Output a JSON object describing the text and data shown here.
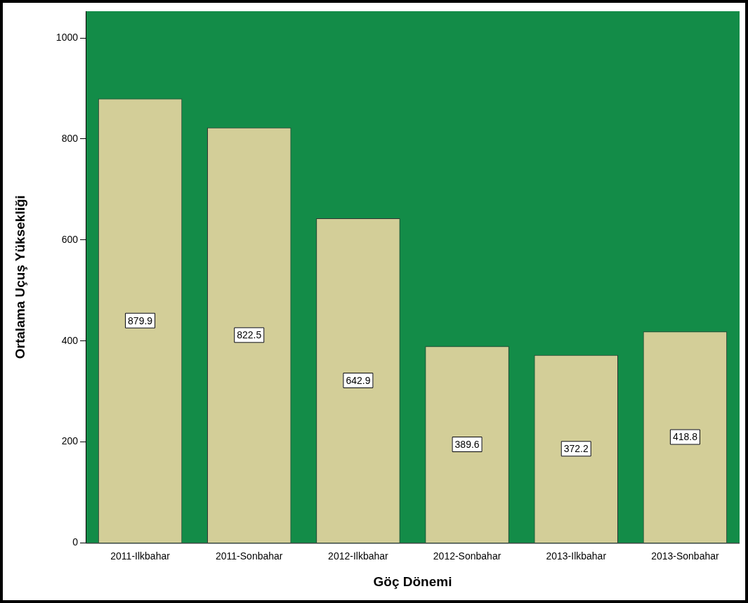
{
  "chart_data": {
    "type": "bar",
    "xlabel": "Göç Dönemi",
    "ylabel": "Ortalama Uçuş Yüksekliği",
    "categories": [
      "2011-Ilkbahar",
      "2011-Sonbahar",
      "2012-Ilkbahar",
      "2012-Sonbahar",
      "2013-Ilkbahar",
      "2013-Sonbahar"
    ],
    "values": [
      879.9,
      822.5,
      642.9,
      389.6,
      372.2,
      418.8
    ],
    "color": "#d3ce98",
    "ylim": [
      0,
      1053
    ],
    "yticks": [
      0,
      200,
      400,
      600,
      800,
      1000
    ],
    "grid": false,
    "legend": false,
    "data_labels": true
  }
}
